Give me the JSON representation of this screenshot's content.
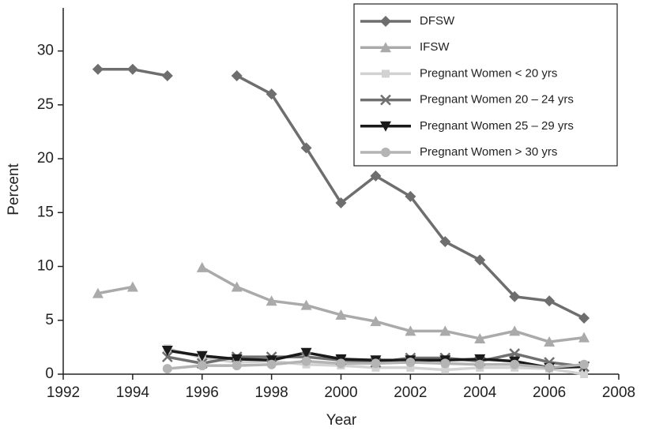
{
  "chart_data": {
    "type": "line",
    "x_label": "Year",
    "y_label": "Percent",
    "x": [
      1993,
      1994,
      1995,
      1996,
      1997,
      1998,
      1999,
      2000,
      2001,
      2002,
      2003,
      2004,
      2005,
      2006,
      2007
    ],
    "series": [
      {
        "name": "DFSW",
        "color": "#6e6e6e",
        "marker": "diamond",
        "values": [
          28.3,
          28.3,
          27.7,
          null,
          27.7,
          26.0,
          21.0,
          15.9,
          18.4,
          16.5,
          12.3,
          10.6,
          7.2,
          6.8,
          5.2
        ]
      },
      {
        "name": "IFSW",
        "color": "#aaaaaa",
        "marker": "triangle",
        "values": [
          7.5,
          8.1,
          null,
          9.9,
          8.1,
          6.8,
          6.4,
          5.5,
          4.9,
          4.0,
          4.0,
          3.3,
          4.0,
          3.0,
          3.4
        ]
      },
      {
        "name": "Pregnant Women < 20 yrs",
        "color": "#d2d2d2",
        "marker": "square",
        "values": [
          null,
          null,
          2.4,
          1.5,
          1.1,
          1.2,
          0.9,
          0.8,
          0.6,
          0.6,
          0.4,
          0.6,
          0.6,
          0.5,
          0.0
        ]
      },
      {
        "name": "Pregnant Women 20 – 24 yrs",
        "color": "#707070",
        "marker": "x",
        "values": [
          null,
          null,
          1.6,
          1.0,
          1.6,
          1.6,
          1.6,
          1.3,
          1.1,
          1.5,
          1.5,
          1.2,
          1.9,
          1.1,
          0.7
        ]
      },
      {
        "name": "Pregnant Women 25 – 29 yrs",
        "color": "#1a1a1a",
        "marker": "triangle-down",
        "values": [
          null,
          null,
          2.2,
          1.7,
          1.4,
          1.3,
          2.0,
          1.4,
          1.3,
          1.3,
          1.3,
          1.4,
          1.2,
          0.6,
          0.7
        ]
      },
      {
        "name": "Pregnant Women > 30 yrs",
        "color": "#b4b4b4",
        "marker": "circle",
        "values": [
          null,
          null,
          0.5,
          0.8,
          0.8,
          0.9,
          1.2,
          1.0,
          1.0,
          1.1,
          1.0,
          0.9,
          0.9,
          0.6,
          0.9
        ]
      }
    ],
    "xlim": [
      1992,
      2008
    ],
    "xticks": [
      1992,
      1994,
      1996,
      1998,
      2000,
      2002,
      2004,
      2006,
      2008
    ],
    "ylim": [
      0,
      34
    ],
    "yticks": [
      0,
      5,
      10,
      15,
      20,
      25,
      30
    ],
    "grid": false,
    "legend": "upper right"
  }
}
